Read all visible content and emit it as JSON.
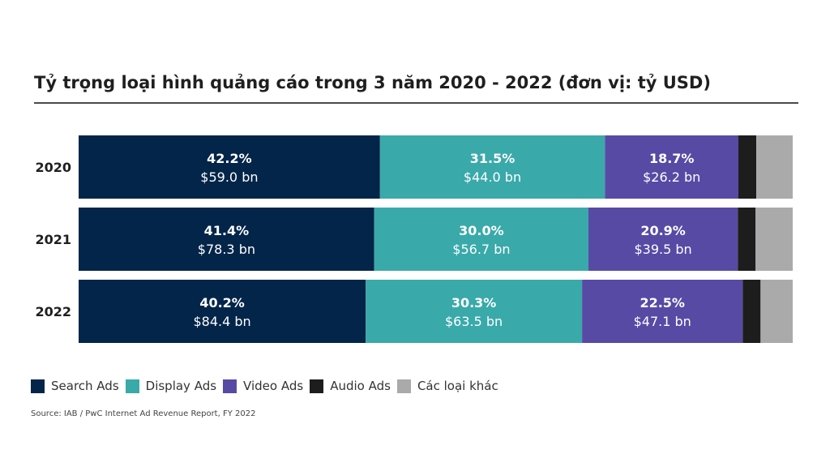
{
  "chart_data": {
    "type": "bar",
    "orientation": "horizontal",
    "stacked": true,
    "title": "Tỷ trọng loại hình quảng cáo trong 3 năm 2020 - 2022 (đơn vị: tỷ USD)",
    "categories": [
      "2020",
      "2021",
      "2022"
    ],
    "series": [
      {
        "name": "Search Ads",
        "color": "#032549",
        "values": [
          42.2,
          41.4,
          40.2
        ],
        "labels_pct": [
          "42.2%",
          "41.4%",
          "40.2%"
        ],
        "labels_val": [
          "$59.0 bn",
          "$78.3 bn",
          "$84.4 bn"
        ]
      },
      {
        "name": "Display Ads",
        "color": "#3aa9aa",
        "values": [
          31.5,
          30.0,
          30.3
        ],
        "labels_pct": [
          "31.5%",
          "30.0%",
          "30.3%"
        ],
        "labels_val": [
          "$44.0 bn",
          "$56.7 bn",
          "$63.5 bn"
        ]
      },
      {
        "name": "Video Ads",
        "color": "#574aa5",
        "values": [
          18.7,
          20.9,
          22.5
        ],
        "labels_pct": [
          "18.7%",
          "20.9%",
          "22.5%"
        ],
        "labels_val": [
          "$26.2 bn",
          "$39.5 bn",
          "$47.1 bn"
        ]
      },
      {
        "name": "Audio Ads",
        "color": "#1d1d1d",
        "values": [
          2.5,
          2.5,
          2.5
        ],
        "labels_pct": [
          "",
          "",
          ""
        ],
        "labels_val": [
          "",
          "",
          ""
        ]
      },
      {
        "name": "Các loại khác",
        "color": "#aaaaaa",
        "values": [
          5.1,
          5.2,
          4.5
        ],
        "labels_pct": [
          "",
          "",
          ""
        ],
        "labels_val": [
          "",
          "",
          ""
        ]
      }
    ],
    "xlim": [
      0,
      100
    ],
    "legend_position": "bottom-left"
  },
  "source": "Source: IAB / PwC Internet Ad Revenue Report, FY 2022"
}
